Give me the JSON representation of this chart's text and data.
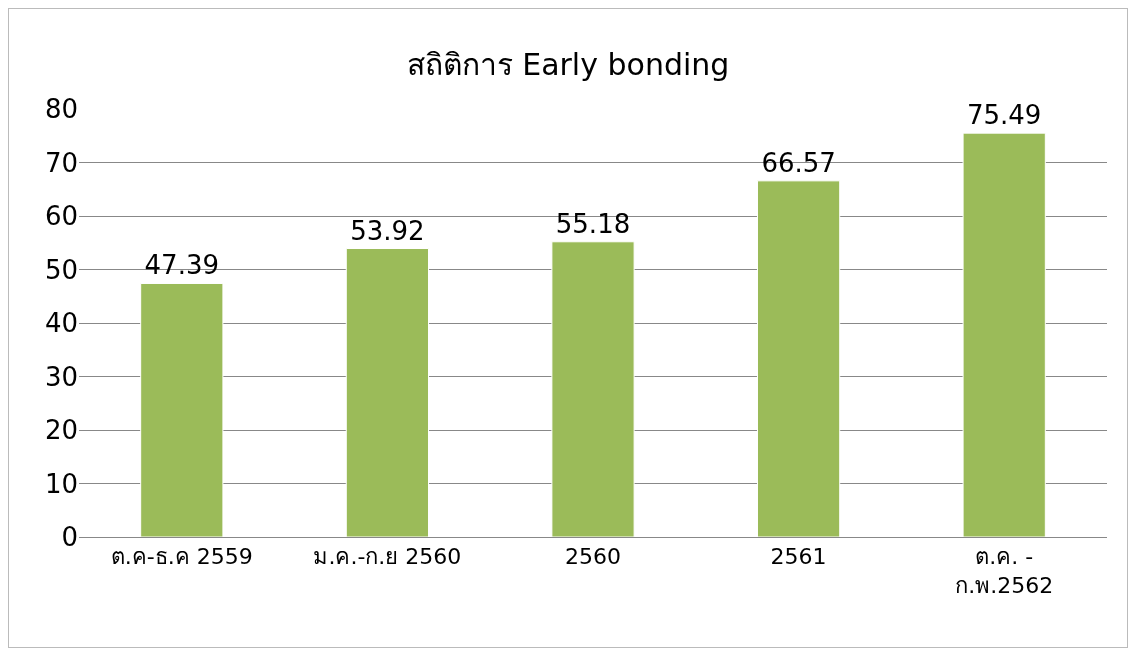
{
  "chart_data": {
    "type": "bar",
    "title": "สถิติการ Early bonding",
    "categories": [
      "ต.ค-ธ.ค 2559",
      "ม.ค.-ก.ย 2560",
      "2560",
      "2561",
      "ต.ค. - ก.พ.2562"
    ],
    "values": [
      47.39,
      53.92,
      55.18,
      66.57,
      75.49
    ],
    "color": "#9bbb59",
    "ylim": [
      0,
      80
    ],
    "yticks": [
      0,
      10,
      20,
      30,
      40,
      50,
      60,
      70,
      80
    ],
    "grid": "y",
    "data_labels": true
  }
}
